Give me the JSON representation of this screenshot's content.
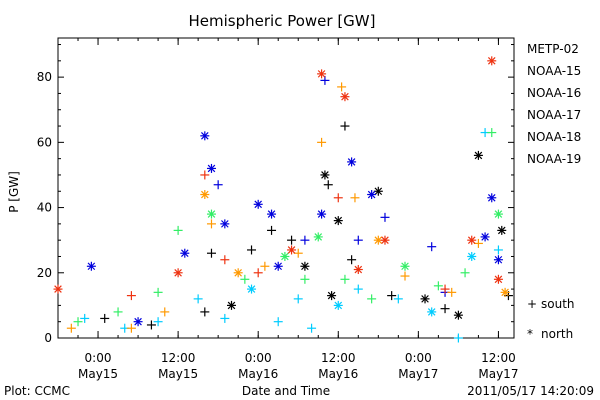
{
  "chart_data": {
    "type": "scatter",
    "title": "Hemispheric Power [GW]",
    "xlabel": "Date and Time",
    "ylabel": "P [GW]",
    "ylim": [
      0,
      92
    ],
    "xlim": [
      "2011-05-14 18:00",
      "2011-05-17 14:20"
    ],
    "yticks": [
      0,
      20,
      40,
      60,
      80
    ],
    "xticks": [
      {
        "time": "2011-05-15 00:00",
        "line1": "0:00",
        "line2": "May15"
      },
      {
        "time": "2011-05-15 12:00",
        "line1": "12:00",
        "line2": "May15"
      },
      {
        "time": "2011-05-16 00:00",
        "line1": "0:00",
        "line2": "May16"
      },
      {
        "time": "2011-05-16 12:00",
        "line1": "12:00",
        "line2": "May16"
      },
      {
        "time": "2011-05-17 00:00",
        "line1": "0:00",
        "line2": "May17"
      },
      {
        "time": "2011-05-17 12:00",
        "line1": "12:00",
        "line2": "May17"
      }
    ],
    "grid": false,
    "legend_position": "right",
    "marker_key": {
      "south": {
        "symbol": "+",
        "label": "south"
      },
      "north": {
        "symbol": "*",
        "label": "north"
      }
    },
    "series": [
      {
        "name": "METP-02",
        "color": "#000000",
        "points": [
          [
            "2011-05-15 01:00",
            6,
            "+"
          ],
          [
            "2011-05-15 08:00",
            4,
            "+"
          ],
          [
            "2011-05-15 16:00",
            8,
            "+"
          ],
          [
            "2011-05-15 17:00",
            26,
            "+"
          ],
          [
            "2011-05-15 20:00",
            10,
            "*"
          ],
          [
            "2011-05-15 23:00",
            27,
            "+"
          ],
          [
            "2011-05-16 02:00",
            33,
            "+"
          ],
          [
            "2011-05-16 05:00",
            30,
            "+"
          ],
          [
            "2011-05-16 07:00",
            22,
            "*"
          ],
          [
            "2011-05-16 10:00",
            50,
            "*"
          ],
          [
            "2011-05-16 10:30",
            47,
            "+"
          ],
          [
            "2011-05-16 11:00",
            13,
            "*"
          ],
          [
            "2011-05-16 12:00",
            36,
            "*"
          ],
          [
            "2011-05-16 13:00",
            65,
            "+"
          ],
          [
            "2011-05-16 14:00",
            24,
            "+"
          ],
          [
            "2011-05-16 18:00",
            45,
            "*"
          ],
          [
            "2011-05-16 20:00",
            13,
            "+"
          ],
          [
            "2011-05-17 01:00",
            12,
            "*"
          ],
          [
            "2011-05-17 04:00",
            9,
            "+"
          ],
          [
            "2011-05-17 06:00",
            7,
            "*"
          ],
          [
            "2011-05-17 09:00",
            56,
            "*"
          ],
          [
            "2011-05-17 12:30",
            33,
            "*"
          ],
          [
            "2011-05-17 13:30",
            13,
            "+"
          ]
        ]
      },
      {
        "name": "NOAA-15",
        "color": "#0000dd",
        "points": [
          [
            "2011-05-14 23:00",
            22,
            "*"
          ],
          [
            "2011-05-15 06:00",
            5,
            "*"
          ],
          [
            "2011-05-15 13:00",
            26,
            "*"
          ],
          [
            "2011-05-15 16:00",
            62,
            "*"
          ],
          [
            "2011-05-15 17:00",
            52,
            "*"
          ],
          [
            "2011-05-15 18:00",
            47,
            "+"
          ],
          [
            "2011-05-15 19:00",
            35,
            "*"
          ],
          [
            "2011-05-16 00:00",
            41,
            "*"
          ],
          [
            "2011-05-16 02:00",
            38,
            "*"
          ],
          [
            "2011-05-16 03:00",
            22,
            "*"
          ],
          [
            "2011-05-16 07:00",
            30,
            "+"
          ],
          [
            "2011-05-16 09:30",
            38,
            "*"
          ],
          [
            "2011-05-16 10:00",
            79,
            "+"
          ],
          [
            "2011-05-16 14:00",
            54,
            "*"
          ],
          [
            "2011-05-16 15:00",
            30,
            "+"
          ],
          [
            "2011-05-16 17:00",
            44,
            "*"
          ],
          [
            "2011-05-16 19:00",
            37,
            "+"
          ],
          [
            "2011-05-17 02:00",
            28,
            "+"
          ],
          [
            "2011-05-17 04:00",
            14,
            "+"
          ],
          [
            "2011-05-17 10:00",
            31,
            "*"
          ],
          [
            "2011-05-17 11:00",
            43,
            "*"
          ],
          [
            "2011-05-17 12:00",
            24,
            "*"
          ]
        ]
      },
      {
        "name": "NOAA-16",
        "color": "#00ccff",
        "points": [
          [
            "2011-05-14 22:00",
            6,
            "+"
          ],
          [
            "2011-05-15 04:00",
            3,
            "+"
          ],
          [
            "2011-05-15 09:00",
            5,
            "+"
          ],
          [
            "2011-05-15 15:00",
            12,
            "+"
          ],
          [
            "2011-05-15 19:00",
            6,
            "+"
          ],
          [
            "2011-05-15 23:00",
            15,
            "*"
          ],
          [
            "2011-05-16 03:00",
            5,
            "+"
          ],
          [
            "2011-05-16 06:00",
            12,
            "+"
          ],
          [
            "2011-05-16 08:00",
            3,
            "+"
          ],
          [
            "2011-05-16 12:00",
            10,
            "*"
          ],
          [
            "2011-05-16 15:00",
            15,
            "+"
          ],
          [
            "2011-05-16 21:00",
            12,
            "+"
          ],
          [
            "2011-05-17 02:00",
            8,
            "*"
          ],
          [
            "2011-05-17 06:00",
            0,
            "+"
          ],
          [
            "2011-05-17 08:00",
            25,
            "*"
          ],
          [
            "2011-05-17 10:00",
            63,
            "+"
          ],
          [
            "2011-05-17 12:00",
            27,
            "+"
          ]
        ]
      },
      {
        "name": "NOAA-17",
        "color": "#33ee66",
        "points": [
          [
            "2011-05-14 21:00",
            5,
            "+"
          ],
          [
            "2011-05-15 03:00",
            8,
            "+"
          ],
          [
            "2011-05-15 09:00",
            14,
            "+"
          ],
          [
            "2011-05-15 12:00",
            33,
            "+"
          ],
          [
            "2011-05-15 17:00",
            38,
            "*"
          ],
          [
            "2011-05-15 22:00",
            18,
            "+"
          ],
          [
            "2011-05-16 04:00",
            25,
            "*"
          ],
          [
            "2011-05-16 07:00",
            18,
            "+"
          ],
          [
            "2011-05-16 09:00",
            31,
            "*"
          ],
          [
            "2011-05-16 13:00",
            18,
            "+"
          ],
          [
            "2011-05-16 17:00",
            12,
            "+"
          ],
          [
            "2011-05-16 22:00",
            22,
            "*"
          ],
          [
            "2011-05-17 03:00",
            16,
            "+"
          ],
          [
            "2011-05-17 07:00",
            20,
            "+"
          ],
          [
            "2011-05-17 11:00",
            63,
            "+"
          ],
          [
            "2011-05-17 12:00",
            38,
            "*"
          ]
        ]
      },
      {
        "name": "NOAA-18",
        "color": "#ff9900",
        "points": [
          [
            "2011-05-14 20:00",
            3,
            "+"
          ],
          [
            "2011-05-15 05:00",
            3,
            "+"
          ],
          [
            "2011-05-15 10:00",
            8,
            "+"
          ],
          [
            "2011-05-15 16:00",
            44,
            "*"
          ],
          [
            "2011-05-15 17:00",
            35,
            "+"
          ],
          [
            "2011-05-15 21:00",
            20,
            "*"
          ],
          [
            "2011-05-16 01:00",
            22,
            "+"
          ],
          [
            "2011-05-16 06:00",
            26,
            "+"
          ],
          [
            "2011-05-16 09:30",
            60,
            "+"
          ],
          [
            "2011-05-16 12:30",
            77,
            "+"
          ],
          [
            "2011-05-16 14:30",
            43,
            "+"
          ],
          [
            "2011-05-16 18:00",
            30,
            "*"
          ],
          [
            "2011-05-16 22:00",
            19,
            "+"
          ],
          [
            "2011-05-17 05:00",
            14,
            "+"
          ],
          [
            "2011-05-17 09:00",
            29,
            "+"
          ],
          [
            "2011-05-17 13:00",
            14,
            "*"
          ]
        ]
      },
      {
        "name": "NOAA-19",
        "color": "#ee3311",
        "points": [
          [
            "2011-05-14 18:00",
            15,
            "*"
          ],
          [
            "2011-05-15 05:00",
            13,
            "+"
          ],
          [
            "2011-05-15 12:00",
            20,
            "*"
          ],
          [
            "2011-05-15 16:00",
            50,
            "+"
          ],
          [
            "2011-05-15 19:00",
            24,
            "+"
          ],
          [
            "2011-05-16 00:00",
            20,
            "+"
          ],
          [
            "2011-05-16 05:00",
            27,
            "*"
          ],
          [
            "2011-05-16 09:30",
            81,
            "*"
          ],
          [
            "2011-05-16 12:00",
            43,
            "+"
          ],
          [
            "2011-05-16 13:00",
            74,
            "*"
          ],
          [
            "2011-05-16 15:00",
            21,
            "*"
          ],
          [
            "2011-05-16 19:00",
            30,
            "*"
          ],
          [
            "2011-05-17 04:00",
            15,
            "+"
          ],
          [
            "2011-05-17 08:00",
            30,
            "*"
          ],
          [
            "2011-05-17 11:00",
            85,
            "*"
          ],
          [
            "2011-05-17 12:00",
            18,
            "*"
          ]
        ]
      }
    ]
  },
  "footer": {
    "left": "Plot: CCMC",
    "center": "Date and Time",
    "right": "2011/05/17 14:20:09"
  }
}
